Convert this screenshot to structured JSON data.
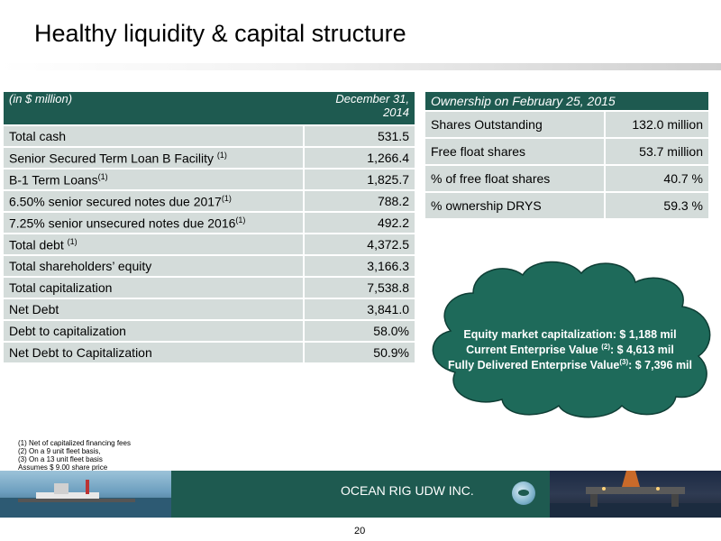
{
  "title": "Healthy liquidity & capital structure",
  "left_table": {
    "header_label": "(in $ million)",
    "header_date": "December 31, 2014",
    "rows": [
      {
        "label": "Total cash",
        "sup": "",
        "value": "531.5"
      },
      {
        "label": "Senior Secured Term Loan B Facility ",
        "sup": "(1)",
        "value": "1,266.4"
      },
      {
        "label": "B-1 Term Loans",
        "sup": "(1)",
        "value": "1,825.7"
      },
      {
        "label": "6.50% senior secured notes due 2017",
        "sup": "(1)",
        "value": "788.2"
      },
      {
        "label": "7.25% senior unsecured notes due 2016",
        "sup": "(1)",
        "value": "492.2"
      },
      {
        "label": "Total debt ",
        "sup": "(1)",
        "value": "4,372.5"
      },
      {
        "label": "Total shareholders’ equity",
        "sup": "",
        "value": "3,166.3"
      },
      {
        "label": "Total capitalization",
        "sup": "",
        "value": "7,538.8"
      },
      {
        "label": "Net Debt",
        "sup": "",
        "value": "3,841.0"
      },
      {
        "label": "Debt  to capitalization",
        "sup": "",
        "value": "58.0%"
      },
      {
        "label": "Net Debt to Capitalization",
        "sup": "",
        "value": "50.9%"
      }
    ]
  },
  "right_table": {
    "header": "Ownership on February 25, 2015",
    "rows": [
      {
        "label": "Shares Outstanding",
        "value": "132.0 million"
      },
      {
        "label": "Free float shares",
        "value": "53.7 million"
      },
      {
        "label": "% of free float shares",
        "value": "40.7 %"
      },
      {
        "label": "% ownership DRYS",
        "value": "59.3 %"
      }
    ]
  },
  "cloud": {
    "line1": "Equity market capitalization: $ 1,188 mil",
    "line2_a": "Current Enterprise Value ",
    "line2_sup": "(2)",
    "line2_b": ": $ 4,613 mil",
    "line3_a": "Fully Delivered Enterprise Value",
    "line3_sup": "(3)",
    "line3_b": ": $ 7,396 mil"
  },
  "footnotes": [
    "(1) Net of capitalized  financing fees",
    "(2) On a 9 unit fleet basis,",
    "(3) On a 13 unit fleet basis",
    "Assumes $ 9.00 share price"
  ],
  "company": "OCEAN RIG UDW INC.",
  "page_number": "20",
  "colors": {
    "accent": "#1e5a50",
    "row": "#d4dcda",
    "cloud": "#1e6a5a"
  }
}
